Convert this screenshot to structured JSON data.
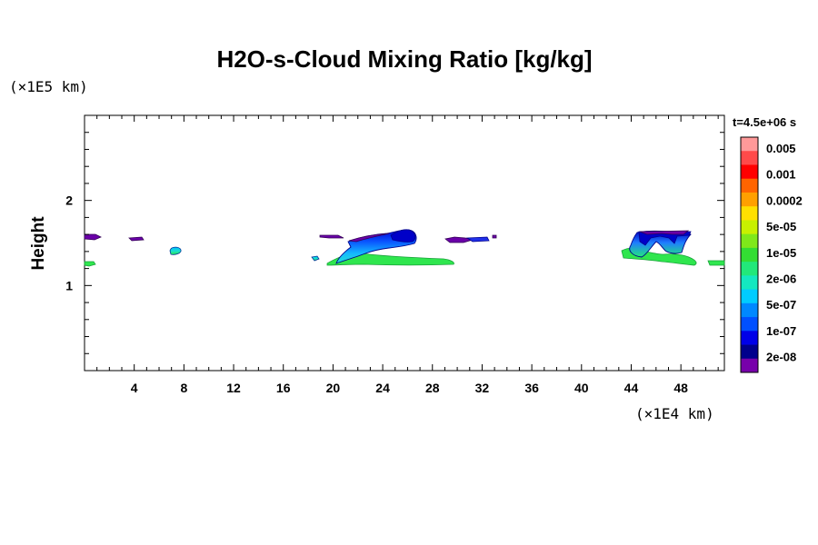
{
  "chart_data": {
    "type": "heatmap",
    "title": "H2O-s-Cloud Mixing Ratio [kg/kg]",
    "xlabel": "",
    "ylabel": "Height",
    "x_unit": "(×1E4 km)",
    "y_unit": "(×1E5 km)",
    "time_label": "t=4.5e+06 s",
    "xlim": [
      0,
      51.5
    ],
    "ylim": [
      0,
      3
    ],
    "x_ticks": [
      4,
      8,
      12,
      16,
      20,
      24,
      28,
      32,
      36,
      40,
      44,
      48
    ],
    "y_ticks": [
      1,
      2
    ],
    "grid": false,
    "colorbar": {
      "labels": [
        "0.005",
        "0.001",
        "0.0002",
        "5e-05",
        "1e-05",
        "2e-06",
        "5e-07",
        "1e-07",
        "2e-08"
      ],
      "colors": [
        "#ff9999",
        "#ff4a4a",
        "#ff0000",
        "#ff6400",
        "#ffa000",
        "#ffe000",
        "#c8f000",
        "#7fe81a",
        "#33dd33",
        "#22e87a",
        "#14e8c0",
        "#00ccff",
        "#0088ff",
        "#0050ff",
        "#0000e8",
        "#00008c",
        "#7700aa"
      ]
    },
    "cloud_regions": [
      {
        "x": [
          0,
          1.2
        ],
        "y": [
          1.53,
          1.6
        ],
        "level": "2e-08"
      },
      {
        "x": [
          0,
          0.8
        ],
        "y": [
          1.25,
          1.29
        ],
        "level": "2e-06"
      },
      {
        "x": [
          3.6,
          4.6
        ],
        "y": [
          1.53,
          1.57
        ],
        "level": "2e-08"
      },
      {
        "x": [
          6.8,
          7.6
        ],
        "y": [
          1.37,
          1.44
        ],
        "level": "5e-07"
      },
      {
        "x": [
          18.3,
          18.9
        ],
        "y": [
          1.31,
          1.35
        ],
        "level": "5e-07"
      },
      {
        "x": [
          18.7,
          20.8
        ],
        "y": [
          1.56,
          1.6
        ],
        "level": "2e-08"
      },
      {
        "x": [
          19.3,
          29.2
        ],
        "y": [
          1.25,
          1.5
        ],
        "level": "2e-06"
      },
      {
        "x": [
          21.2,
          26.4
        ],
        "y": [
          1.42,
          1.68
        ],
        "level": "2e-08"
      },
      {
        "x": [
          29,
          31.8
        ],
        "y": [
          1.52,
          1.57
        ],
        "level": "2e-08"
      },
      {
        "x": [
          32.6,
          32.9
        ],
        "y": [
          1.56,
          1.59
        ],
        "level": "2e-08"
      },
      {
        "x": [
          43.4,
          49.6
        ],
        "y": [
          1.28,
          1.45
        ],
        "level": "2e-06"
      },
      {
        "x": [
          44,
          48
        ],
        "y": [
          1.37,
          1.64
        ],
        "level": "2e-08"
      },
      {
        "x": [
          50.3,
          51.5
        ],
        "y": [
          1.25,
          1.29
        ],
        "level": "2e-06"
      }
    ]
  }
}
